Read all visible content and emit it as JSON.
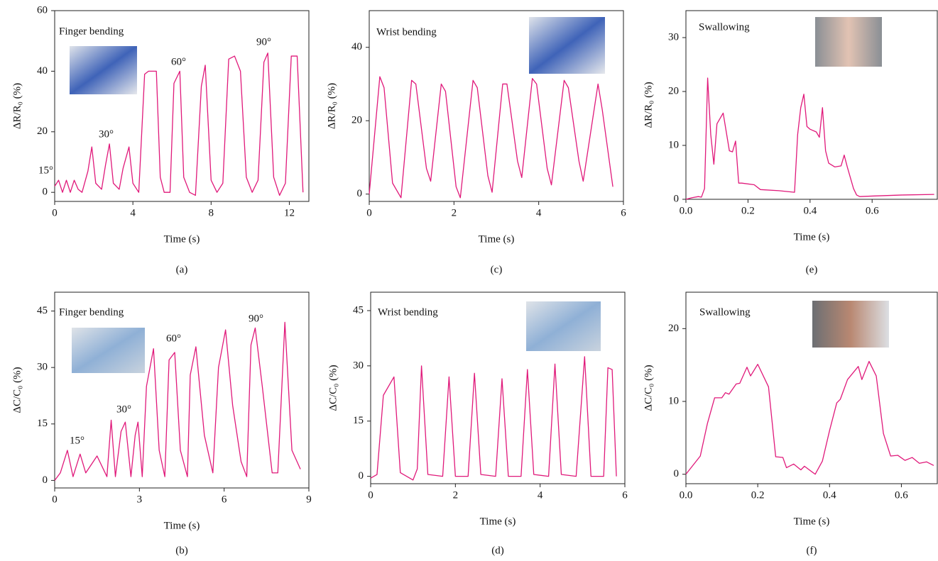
{
  "chart_data": [
    {
      "type": "line",
      "label": "(a)",
      "xlabel": "Time (s)",
      "ylabel": "ΔR/R₀ (%)",
      "color": "#e0197a",
      "annotations": [
        "Finger bending",
        "15°",
        "30°",
        "60°",
        "90°"
      ],
      "xlim": [
        0,
        13
      ],
      "xticks": [
        0,
        4,
        8,
        12
      ],
      "ylim": [
        -3,
        60
      ],
      "yticks": [
        0,
        20,
        40,
        60
      ],
      "x": [
        0,
        0.2,
        0.4,
        0.6,
        0.8,
        1.0,
        1.2,
        1.4,
        1.7,
        1.9,
        2.1,
        2.4,
        2.6,
        2.8,
        3.0,
        3.3,
        3.5,
        3.8,
        4.0,
        4.3,
        4.6,
        4.8,
        5.2,
        5.4,
        5.6,
        5.9,
        6.1,
        6.4,
        6.6,
        6.9,
        7.2,
        7.5,
        7.7,
        8.0,
        8.3,
        8.6,
        8.9,
        9.2,
        9.5,
        9.8,
        10.1,
        10.4,
        10.7,
        10.9,
        11.2,
        11.5,
        11.8,
        12.1,
        12.4,
        12.7
      ],
      "values": [
        2,
        4,
        0,
        4,
        0,
        4,
        1,
        0,
        7,
        15,
        3,
        1,
        9,
        16,
        3,
        1,
        8,
        15,
        3,
        0,
        39,
        40,
        40,
        5,
        0,
        0,
        36,
        40,
        5,
        0,
        -1,
        35,
        42,
        4,
        0,
        3,
        44,
        45,
        40,
        5,
        0,
        4,
        43,
        46,
        5,
        -1,
        3,
        45,
        45,
        0
      ]
    },
    {
      "type": "line",
      "label": "(b)",
      "xlabel": "Time (s)",
      "ylabel": "ΔC/C₀ (%)",
      "color": "#e0197a",
      "annotations": [
        "Finger bending",
        "15°",
        "30°",
        "60°",
        "90°"
      ],
      "xlim": [
        0,
        9
      ],
      "xticks": [
        0,
        3,
        6,
        9
      ],
      "ylim": [
        -2,
        50
      ],
      "yticks": [
        0,
        15,
        30,
        45
      ],
      "x": [
        0,
        0.2,
        0.45,
        0.65,
        0.9,
        1.1,
        1.5,
        1.85,
        2.0,
        2.15,
        2.35,
        2.5,
        2.7,
        2.85,
        2.95,
        3.1,
        3.25,
        3.5,
        3.7,
        3.9,
        4.05,
        4.25,
        4.45,
        4.7,
        4.8,
        5.0,
        5.3,
        5.6,
        5.8,
        6.05,
        6.3,
        6.6,
        6.8,
        6.95,
        7.1,
        7.35,
        7.7,
        7.9,
        8.15,
        8.4,
        8.7
      ],
      "values": [
        0,
        2,
        8,
        1,
        7,
        2,
        6.5,
        1,
        16,
        1,
        13,
        15.5,
        1,
        12,
        15.5,
        1,
        25,
        35,
        8,
        1,
        32,
        34,
        8,
        1,
        28,
        35.5,
        12,
        2,
        30,
        40,
        20,
        5,
        1,
        36,
        40.5,
        25,
        2,
        2,
        42,
        8,
        3
      ]
    },
    {
      "type": "line",
      "label": "(c)",
      "xlabel": "Time (s)",
      "ylabel": "ΔR/R₀ (%)",
      "color": "#e0197a",
      "annotations": [
        "Wrist bending"
      ],
      "xlim": [
        0,
        6
      ],
      "xticks": [
        0,
        2,
        4,
        6
      ],
      "ylim": [
        -2,
        50
      ],
      "yticks": [
        0,
        20,
        40
      ],
      "x": [
        0,
        0.25,
        0.35,
        0.55,
        0.75,
        1.0,
        1.1,
        1.35,
        1.45,
        1.7,
        1.8,
        2.05,
        2.15,
        2.45,
        2.55,
        2.8,
        2.9,
        3.15,
        3.25,
        3.5,
        3.6,
        3.85,
        3.95,
        4.2,
        4.3,
        4.6,
        4.7,
        4.95,
        5.05,
        5.4,
        5.5,
        5.75
      ],
      "values": [
        0,
        32,
        29,
        3,
        -1,
        31,
        30,
        7,
        3.5,
        30,
        28,
        2,
        -1,
        31,
        29,
        5,
        0.5,
        30,
        30,
        9,
        4.5,
        31.5,
        30,
        7,
        2.5,
        31,
        29,
        9,
        3.5,
        30,
        23,
        2
      ]
    },
    {
      "type": "line",
      "label": "(d)",
      "xlabel": "Time (s)",
      "ylabel": "ΔC/C₀ (%)",
      "color": "#e0197a",
      "annotations": [
        "Wrist bending"
      ],
      "xlim": [
        0,
        6
      ],
      "xticks": [
        0,
        2,
        4,
        6
      ],
      "ylim": [
        -2,
        50
      ],
      "yticks": [
        0,
        15,
        30,
        45
      ],
      "x": [
        0,
        0.15,
        0.3,
        0.55,
        0.7,
        1.0,
        1.1,
        1.2,
        1.35,
        1.7,
        1.85,
        2.0,
        2.3,
        2.45,
        2.6,
        2.95,
        3.1,
        3.25,
        3.55,
        3.7,
        3.85,
        4.2,
        4.35,
        4.5,
        4.85,
        5.05,
        5.2,
        5.5,
        5.6,
        5.7,
        5.8
      ],
      "values": [
        -0.5,
        0.5,
        22,
        27,
        1,
        -1,
        2,
        30,
        0.5,
        0,
        27,
        0,
        0,
        28,
        0.5,
        0,
        26.5,
        0,
        0,
        29,
        0.5,
        0,
        30.5,
        0.5,
        0,
        32.5,
        0,
        0,
        29.5,
        29,
        0
      ]
    },
    {
      "type": "line",
      "label": "(e)",
      "xlabel": "Time (s)",
      "ylabel": "ΔR/R₀ (%)",
      "color": "#e0197a",
      "annotations": [
        "Swallowing"
      ],
      "xlim": [
        0,
        0.81
      ],
      "xticks": [
        {
          "value": 0,
          "label": "0.0"
        },
        0.2,
        0.4,
        0.6
      ],
      "ylim": [
        0,
        35
      ],
      "yticks": [
        0,
        10,
        20,
        30
      ],
      "x": [
        0,
        0.02,
        0.04,
        0.05,
        0.06,
        0.07,
        0.08,
        0.09,
        0.1,
        0.12,
        0.14,
        0.15,
        0.16,
        0.17,
        0.18,
        0.22,
        0.24,
        0.3,
        0.35,
        0.36,
        0.37,
        0.38,
        0.39,
        0.4,
        0.42,
        0.43,
        0.44,
        0.45,
        0.46,
        0.48,
        0.5,
        0.51,
        0.52,
        0.54,
        0.55,
        0.56,
        0.6,
        0.7,
        0.8
      ],
      "values": [
        0,
        0.3,
        0.5,
        0.4,
        2,
        22.5,
        12,
        6.5,
        14,
        16,
        9,
        8.8,
        10.8,
        3,
        3,
        2.7,
        1.8,
        1.6,
        1.3,
        12,
        17,
        19.5,
        13.5,
        13,
        12.5,
        11.5,
        17,
        9,
        6.7,
        6,
        6.2,
        8.2,
        6,
        2,
        0.8,
        0.5,
        0.6,
        0.8,
        0.9
      ]
    },
    {
      "type": "line",
      "label": "(f)",
      "xlabel": "Time (s)",
      "ylabel": "ΔC/C₀ (%)",
      "color": "#e0197a",
      "annotations": [
        "Swallowing"
      ],
      "xlim": [
        0,
        0.7
      ],
      "xticks": [
        {
          "value": 0,
          "label": "0.0"
        },
        0.2,
        0.4,
        0.6
      ],
      "ylim": [
        -1.3,
        25
      ],
      "yticks": [
        0,
        10,
        20
      ],
      "x": [
        0,
        0.04,
        0.06,
        0.08,
        0.1,
        0.11,
        0.12,
        0.14,
        0.15,
        0.17,
        0.18,
        0.2,
        0.23,
        0.25,
        0.27,
        0.28,
        0.3,
        0.32,
        0.33,
        0.36,
        0.38,
        0.4,
        0.42,
        0.43,
        0.45,
        0.48,
        0.49,
        0.51,
        0.53,
        0.55,
        0.57,
        0.59,
        0.61,
        0.63,
        0.65,
        0.67,
        0.69
      ],
      "values": [
        0,
        2.5,
        7,
        10.5,
        10.5,
        11.2,
        11,
        12.4,
        12.5,
        14.7,
        13.5,
        15.1,
        12,
        2.4,
        2.3,
        0.9,
        1.4,
        0.6,
        1.1,
        0,
        1.8,
        6,
        9.8,
        10.3,
        13,
        14.8,
        13,
        15.5,
        13.5,
        5.6,
        2.5,
        2.6,
        1.9,
        2.3,
        1.5,
        1.7,
        1.2
      ]
    }
  ]
}
